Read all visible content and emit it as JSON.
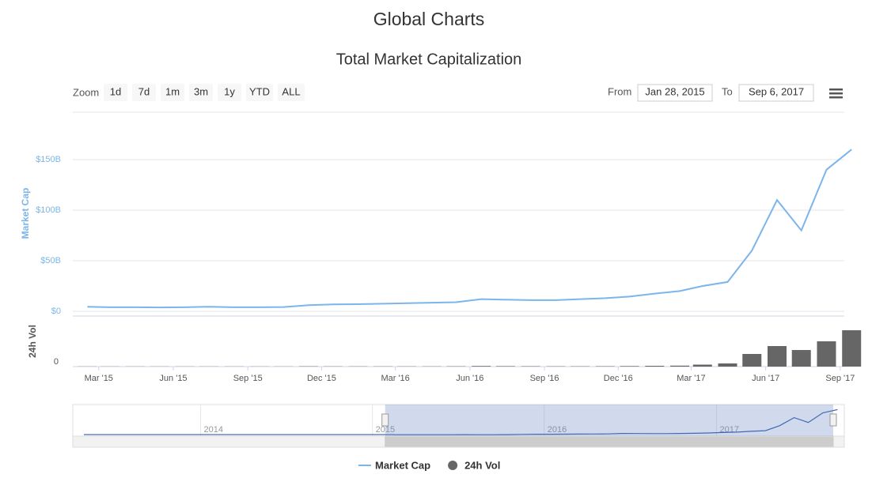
{
  "header": {
    "title": "Global Charts"
  },
  "chart_data": {
    "type": "line",
    "title": "Total Market Capitalization",
    "zoom": {
      "label": "Zoom",
      "buttons": [
        "1d",
        "7d",
        "1m",
        "3m",
        "1y",
        "YTD",
        "ALL"
      ]
    },
    "range": {
      "from_label": "From",
      "from": "Jan 28, 2015",
      "to_label": "To",
      "to": "Sep 6, 2017"
    },
    "ylabel": "Market Cap",
    "y2label": "24h Vol",
    "x": [
      "2015-02",
      "2015-03",
      "2015-04",
      "2015-05",
      "2015-06",
      "2015-07",
      "2015-08",
      "2015-09",
      "2015-10",
      "2015-11",
      "2015-12",
      "2016-01",
      "2016-02",
      "2016-03",
      "2016-04",
      "2016-05",
      "2016-06",
      "2016-07",
      "2016-08",
      "2016-09",
      "2016-10",
      "2016-11",
      "2016-12",
      "2017-01",
      "2017-02",
      "2017-03",
      "2017-04",
      "2017-05",
      "2017-06",
      "2017-07",
      "2017-08",
      "2017-09"
    ],
    "xlim": [
      "2015-01-28",
      "2017-09-06"
    ],
    "xticks": [
      {
        "value": "2015-03",
        "label": "Mar '15"
      },
      {
        "value": "2015-06",
        "label": "Jun '15"
      },
      {
        "value": "2015-09",
        "label": "Sep '15"
      },
      {
        "value": "2015-12",
        "label": "Dec '15"
      },
      {
        "value": "2016-03",
        "label": "Mar '16"
      },
      {
        "value": "2016-06",
        "label": "Jun '16"
      },
      {
        "value": "2016-09",
        "label": "Sep '16"
      },
      {
        "value": "2016-12",
        "label": "Dec '16"
      },
      {
        "value": "2017-03",
        "label": "Mar '17"
      },
      {
        "value": "2017-06",
        "label": "Jun '17"
      },
      {
        "value": "2017-09",
        "label": "Sep '17"
      }
    ],
    "ylim": [
      0,
      200
    ],
    "yticks": [
      {
        "value": 0,
        "label": "$0"
      },
      {
        "value": 50,
        "label": "$50B"
      },
      {
        "value": 100,
        "label": "$100B"
      },
      {
        "value": 150,
        "label": "$150B"
      }
    ],
    "y2lim": [
      0,
      6
    ],
    "y2ticks": [
      0
    ],
    "grid": true,
    "series": [
      {
        "name": "Market Cap",
        "color": "#7cb5ec",
        "values": [
          4.5,
          4,
          4,
          3.8,
          4,
          4.5,
          4,
          4,
          4.2,
          6,
          6.8,
          7,
          7.5,
          8,
          8.5,
          9,
          12,
          11.5,
          11,
          11,
          12,
          13,
          14.5,
          17.5,
          20,
          25,
          29,
          60,
          110,
          80,
          140,
          160
        ]
      },
      {
        "name": "24h Vol",
        "color": "#666666",
        "axis": "y2",
        "values": [
          0.02,
          0.02,
          0.02,
          0.02,
          0.02,
          0.02,
          0.02,
          0.02,
          0.02,
          0.04,
          0.03,
          0.03,
          0.03,
          0.03,
          0.03,
          0.04,
          0.08,
          0.06,
          0.05,
          0.04,
          0.04,
          0.05,
          0.07,
          0.1,
          0.12,
          0.25,
          0.4,
          1.6,
          2.6,
          2.1,
          3.2,
          4.6
        ]
      }
    ],
    "navigator": {
      "xlim": [
        "2013-04-28",
        "2017-09-06"
      ],
      "labels": [
        {
          "value": "2014-01",
          "label": "2014"
        },
        {
          "value": "2015-01",
          "label": "2015"
        },
        {
          "value": "2016-01",
          "label": "2016"
        },
        {
          "value": "2017-01",
          "label": "2017"
        }
      ]
    }
  }
}
